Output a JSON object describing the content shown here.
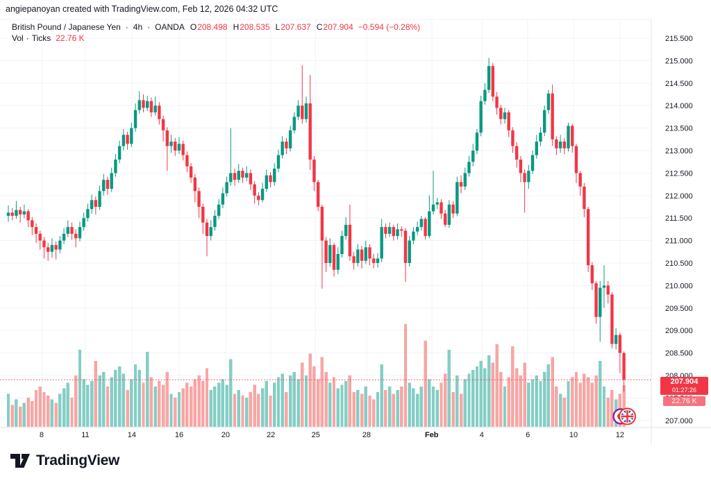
{
  "attribution": "angiepanoyan created with TradingView.com, Feb 12, 2026 04:32 UTC",
  "legend": {
    "symbol": "British Pound / Japanese Yen",
    "sep": "·",
    "interval": "4h",
    "exchange": "OANDA",
    "o_label": "O",
    "o_value": "208.498",
    "h_label": "H",
    "h_value": "208.535",
    "l_label": "L",
    "l_value": "207.637",
    "c_label": "C",
    "c_value": "207.904",
    "change": "−0.594 (−0.28%)",
    "vol_label": "Vol",
    "vol_type": "Ticks",
    "vol_value": "22.76 K"
  },
  "badges": {
    "price": "207.904",
    "countdown": "01:27:26",
    "volume": "22.76 K"
  },
  "logo": {
    "text": "TradingView"
  },
  "chart_data": {
    "type": "candlestick",
    "title": "British Pound / Japanese Yen · 4h · OANDA",
    "exchange": "OANDA",
    "interval": "4h",
    "last_price": 207.904,
    "last_volume_k": 22.76,
    "ylim": [
      206.9,
      215.85
    ],
    "grid": true,
    "colors": {
      "up": "#089981",
      "down": "#F23645",
      "vol_up": "#84CEC5",
      "vol_down": "#F7A6A4",
      "grid": "#F0F3FA",
      "border": "#E0E3EB",
      "text": "#131722"
    },
    "price_ticks": [
      215.5,
      215.0,
      214.5,
      214.0,
      213.5,
      213.0,
      212.5,
      212.0,
      211.5,
      211.0,
      210.5,
      210.0,
      209.5,
      209.0,
      208.5,
      208.0,
      207.5,
      207.0
    ],
    "time_ticks": [
      [
        "8",
        8.39,
        0
      ],
      [
        "11",
        19.4,
        0
      ],
      [
        "14",
        31.1,
        0
      ],
      [
        "16",
        43.0,
        0
      ],
      [
        "20",
        54.7,
        0
      ],
      [
        "22",
        66.1,
        0
      ],
      [
        "25",
        77.4,
        0
      ],
      [
        "28",
        90.2,
        0
      ],
      [
        "Feb",
        106.6,
        1
      ],
      [
        "4",
        119.2,
        0
      ],
      [
        "6",
        130.8,
        0
      ],
      [
        "10",
        142.3,
        0
      ],
      [
        "12",
        154.0,
        0
      ]
    ],
    "layout": {
      "x0": 12,
      "dx": 5.72,
      "bar_hw": 2.2,
      "p_ref": 215.5,
      "y_ref": 55,
      "ppu": 64.8,
      "plot_right": 938,
      "plot_top": 28,
      "axis_label_x": 958,
      "time_label_y": 630,
      "vol_base": 615,
      "vol_ppk": 2.64
    },
    "candles": [
      [
        211.55,
        211.78,
        211.42,
        211.62,
        18
      ],
      [
        211.62,
        211.72,
        211.45,
        211.55,
        12
      ],
      [
        211.55,
        211.88,
        211.48,
        211.68,
        15
      ],
      [
        211.68,
        211.75,
        211.4,
        211.58,
        11
      ],
      [
        211.58,
        211.8,
        211.5,
        211.65,
        13
      ],
      [
        211.65,
        211.7,
        211.3,
        211.45,
        16
      ],
      [
        211.45,
        211.52,
        211.12,
        211.3,
        14
      ],
      [
        211.3,
        211.38,
        210.95,
        211.15,
        20
      ],
      [
        211.15,
        211.22,
        210.8,
        211.0,
        22
      ],
      [
        211.0,
        211.08,
        210.6,
        210.85,
        19
      ],
      [
        210.85,
        210.95,
        210.55,
        210.75,
        17
      ],
      [
        210.75,
        211.05,
        210.62,
        210.9,
        15
      ],
      [
        210.9,
        210.98,
        210.58,
        210.8,
        13
      ],
      [
        210.8,
        211.1,
        210.72,
        211.0,
        18
      ],
      [
        211.0,
        211.28,
        210.92,
        211.15,
        21
      ],
      [
        211.15,
        211.45,
        211.08,
        211.3,
        24
      ],
      [
        211.3,
        211.4,
        211.02,
        211.15,
        16
      ],
      [
        211.15,
        211.25,
        210.85,
        211.05,
        28
      ],
      [
        211.05,
        211.42,
        210.98,
        211.3,
        42
      ],
      [
        211.3,
        211.62,
        211.22,
        211.5,
        26
      ],
      [
        211.5,
        211.82,
        211.42,
        211.7,
        23
      ],
      [
        211.7,
        212.02,
        211.6,
        211.9,
        25
      ],
      [
        211.9,
        211.98,
        211.58,
        211.75,
        36
      ],
      [
        211.75,
        212.22,
        211.68,
        212.1,
        28
      ],
      [
        212.1,
        212.48,
        212.0,
        212.35,
        30
      ],
      [
        212.35,
        212.42,
        212.02,
        212.15,
        22
      ],
      [
        212.15,
        212.62,
        212.08,
        212.5,
        27
      ],
      [
        212.5,
        212.92,
        212.42,
        212.8,
        31
      ],
      [
        212.8,
        213.22,
        212.72,
        213.1,
        33
      ],
      [
        213.1,
        213.48,
        213.0,
        213.35,
        29
      ],
      [
        213.35,
        213.42,
        213.02,
        213.15,
        20
      ],
      [
        213.15,
        213.62,
        213.08,
        213.5,
        26
      ],
      [
        213.5,
        214.05,
        213.42,
        213.9,
        34
      ],
      [
        213.9,
        214.32,
        213.82,
        214.12,
        31
      ],
      [
        214.12,
        214.25,
        213.85,
        213.95,
        24
      ],
      [
        213.95,
        214.22,
        213.88,
        214.1,
        41
      ],
      [
        214.1,
        214.18,
        213.75,
        213.85,
        27
      ],
      [
        213.85,
        214.2,
        213.78,
        214.0,
        22
      ],
      [
        214.0,
        214.08,
        213.58,
        213.7,
        25
      ],
      [
        213.7,
        213.78,
        213.2,
        213.45,
        23
      ],
      [
        213.45,
        213.52,
        212.55,
        213.1,
        30
      ],
      [
        213.1,
        213.35,
        212.95,
        213.2,
        18
      ],
      [
        213.2,
        213.28,
        212.88,
        213.0,
        16
      ],
      [
        213.0,
        213.3,
        212.92,
        213.15,
        19
      ],
      [
        213.15,
        213.22,
        212.78,
        212.9,
        21
      ],
      [
        212.9,
        212.98,
        212.52,
        212.65,
        24
      ],
      [
        212.65,
        212.72,
        212.28,
        212.4,
        22
      ],
      [
        212.4,
        212.48,
        211.85,
        212.1,
        26
      ],
      [
        212.1,
        212.18,
        211.5,
        211.75,
        28
      ],
      [
        211.75,
        211.82,
        211.15,
        211.4,
        25
      ],
      [
        211.4,
        211.48,
        210.65,
        211.1,
        32
      ],
      [
        211.1,
        211.45,
        211.0,
        211.3,
        20
      ],
      [
        211.3,
        211.68,
        211.22,
        211.55,
        22
      ],
      [
        211.55,
        211.92,
        211.48,
        211.8,
        24
      ],
      [
        211.8,
        212.18,
        211.72,
        212.05,
        26
      ],
      [
        212.05,
        212.42,
        211.98,
        212.3,
        23
      ],
      [
        212.3,
        213.5,
        212.22,
        212.5,
        37
      ],
      [
        212.5,
        212.6,
        212.22,
        212.35,
        18
      ],
      [
        212.35,
        212.7,
        212.28,
        212.55,
        20
      ],
      [
        212.55,
        212.62,
        212.28,
        212.4,
        17
      ],
      [
        212.4,
        212.65,
        212.32,
        212.5,
        16
      ],
      [
        212.5,
        212.58,
        212.12,
        212.25,
        19
      ],
      [
        212.25,
        212.32,
        211.82,
        212.0,
        23
      ],
      [
        212.0,
        212.08,
        211.78,
        211.9,
        18
      ],
      [
        211.9,
        212.28,
        211.85,
        212.15,
        21
      ],
      [
        212.15,
        212.58,
        212.08,
        212.45,
        25
      ],
      [
        212.45,
        212.52,
        212.18,
        212.3,
        17
      ],
      [
        212.3,
        212.72,
        212.22,
        212.6,
        24
      ],
      [
        212.6,
        213.02,
        212.52,
        212.9,
        27
      ],
      [
        212.9,
        213.32,
        212.82,
        213.2,
        29
      ],
      [
        213.2,
        213.28,
        212.92,
        213.05,
        19
      ],
      [
        213.05,
        213.55,
        212.98,
        213.45,
        28
      ],
      [
        213.45,
        213.85,
        213.38,
        213.75,
        30
      ],
      [
        213.75,
        214.12,
        213.68,
        214.0,
        26
      ],
      [
        214.0,
        214.9,
        213.6,
        213.7,
        35
      ],
      [
        213.7,
        214.2,
        213.62,
        214.05,
        28
      ],
      [
        214.05,
        214.68,
        212.57,
        212.8,
        40
      ],
      [
        212.8,
        212.88,
        212.1,
        212.3,
        33
      ],
      [
        212.3,
        212.35,
        211.65,
        211.75,
        26
      ],
      [
        211.75,
        211.8,
        209.93,
        211.0,
        38
      ],
      [
        211.0,
        211.08,
        210.3,
        210.5,
        30
      ],
      [
        210.5,
        211.05,
        210.42,
        210.9,
        24
      ],
      [
        210.9,
        210.95,
        210.2,
        210.35,
        27
      ],
      [
        210.35,
        210.85,
        210.25,
        210.7,
        21
      ],
      [
        210.7,
        211.22,
        210.62,
        211.1,
        23
      ],
      [
        211.1,
        211.52,
        211.02,
        211.35,
        25
      ],
      [
        211.35,
        211.8,
        210.55,
        210.65,
        28
      ],
      [
        210.65,
        210.75,
        210.35,
        210.5,
        19
      ],
      [
        210.5,
        210.92,
        210.42,
        210.8,
        20
      ],
      [
        210.8,
        210.88,
        210.38,
        210.55,
        18
      ],
      [
        210.55,
        211.0,
        210.48,
        210.85,
        22
      ],
      [
        210.85,
        210.92,
        210.45,
        210.6,
        17
      ],
      [
        210.6,
        210.7,
        210.38,
        210.5,
        15
      ],
      [
        210.5,
        210.72,
        210.4,
        210.6,
        19
      ],
      [
        210.6,
        211.48,
        210.52,
        211.3,
        34
      ],
      [
        211.3,
        211.38,
        211.05,
        211.15,
        20
      ],
      [
        211.15,
        211.4,
        211.08,
        211.3,
        22
      ],
      [
        211.3,
        211.35,
        211.0,
        211.1,
        18
      ],
      [
        211.1,
        211.38,
        211.02,
        211.25,
        20
      ],
      [
        211.25,
        211.32,
        211.08,
        211.22,
        22
      ],
      [
        211.22,
        211.28,
        210.08,
        210.5,
        56
      ],
      [
        210.5,
        211.1,
        210.42,
        211.0,
        24
      ],
      [
        211.0,
        211.3,
        210.92,
        211.2,
        21
      ],
      [
        211.2,
        211.42,
        211.12,
        211.3,
        18
      ],
      [
        211.3,
        211.55,
        211.22,
        211.48,
        22
      ],
      [
        211.48,
        211.52,
        211.02,
        211.1,
        47
      ],
      [
        211.1,
        212.0,
        211.05,
        211.65,
        26
      ],
      [
        211.65,
        212.55,
        211.58,
        211.8,
        22
      ],
      [
        211.8,
        211.95,
        211.7,
        211.85,
        20
      ],
      [
        211.85,
        211.92,
        211.48,
        211.6,
        24
      ],
      [
        211.6,
        211.68,
        211.3,
        211.35,
        29
      ],
      [
        211.35,
        211.9,
        211.28,
        211.8,
        42
      ],
      [
        211.8,
        211.88,
        211.5,
        211.6,
        19
      ],
      [
        211.6,
        212.42,
        211.54,
        212.3,
        28
      ],
      [
        212.3,
        212.45,
        212.05,
        212.2,
        18
      ],
      [
        212.2,
        212.62,
        212.12,
        212.5,
        26
      ],
      [
        212.5,
        212.88,
        212.42,
        212.75,
        29
      ],
      [
        212.75,
        213.15,
        212.65,
        213.0,
        31
      ],
      [
        213.0,
        213.48,
        212.92,
        213.4,
        33
      ],
      [
        213.4,
        214.22,
        213.32,
        214.1,
        36
      ],
      [
        214.1,
        214.5,
        214.02,
        214.35,
        32
      ],
      [
        214.35,
        215.06,
        214.28,
        214.88,
        39
      ],
      [
        214.88,
        214.95,
        214.1,
        214.2,
        35
      ],
      [
        214.2,
        214.3,
        213.8,
        213.95,
        45
      ],
      [
        213.95,
        214.02,
        213.58,
        213.7,
        30
      ],
      [
        213.7,
        213.95,
        213.6,
        213.85,
        22
      ],
      [
        213.85,
        213.9,
        213.3,
        213.45,
        27
      ],
      [
        213.45,
        213.52,
        212.95,
        213.1,
        44
      ],
      [
        213.1,
        213.18,
        212.62,
        212.8,
        32
      ],
      [
        212.8,
        212.88,
        212.3,
        212.5,
        28
      ],
      [
        212.5,
        212.58,
        211.62,
        212.3,
        35
      ],
      [
        212.3,
        212.68,
        212.15,
        212.55,
        24
      ],
      [
        212.55,
        213.0,
        212.48,
        212.9,
        26
      ],
      [
        212.9,
        213.35,
        212.82,
        213.2,
        28
      ],
      [
        213.2,
        213.52,
        213.1,
        213.4,
        25
      ],
      [
        213.4,
        214.0,
        213.32,
        213.9,
        30
      ],
      [
        213.9,
        214.35,
        213.82,
        214.27,
        34
      ],
      [
        214.27,
        214.47,
        213.1,
        213.25,
        38
      ],
      [
        213.25,
        213.32,
        212.9,
        213.05,
        22
      ],
      [
        213.05,
        213.35,
        212.95,
        213.2,
        18
      ],
      [
        213.2,
        213.28,
        212.92,
        213.05,
        16
      ],
      [
        213.05,
        213.62,
        212.98,
        213.55,
        25
      ],
      [
        213.55,
        213.6,
        212.95,
        213.1,
        27
      ],
      [
        213.1,
        213.15,
        212.28,
        212.5,
        30
      ],
      [
        212.5,
        212.55,
        212.0,
        212.2,
        24
      ],
      [
        212.2,
        212.28,
        211.52,
        211.7,
        29
      ],
      [
        211.7,
        211.75,
        210.3,
        210.45,
        27
      ],
      [
        210.45,
        210.52,
        209.9,
        210.05,
        24
      ],
      [
        210.05,
        210.1,
        209.15,
        209.3,
        28
      ],
      [
        209.3,
        210.1,
        208.75,
        209.95,
        36
      ],
      [
        209.95,
        210.45,
        209.5,
        210.0,
        22
      ],
      [
        210.0,
        210.1,
        209.6,
        209.8,
        16
      ],
      [
        209.8,
        209.85,
        208.6,
        208.7,
        20
      ],
      [
        208.7,
        209.05,
        208.58,
        208.9,
        15
      ],
      [
        208.9,
        208.95,
        208.05,
        208.5,
        18
      ],
      [
        208.498,
        208.535,
        207.637,
        207.904,
        22.76
      ]
    ]
  }
}
